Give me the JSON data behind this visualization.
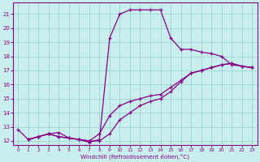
{
  "xlabel": "Windchill (Refroidissement éolien,°C)",
  "xlim": [
    -0.5,
    23.5
  ],
  "ylim": [
    11.7,
    21.8
  ],
  "xticks": [
    0,
    1,
    2,
    3,
    4,
    5,
    6,
    7,
    8,
    9,
    10,
    11,
    12,
    13,
    14,
    15,
    16,
    17,
    18,
    19,
    20,
    21,
    22,
    23
  ],
  "yticks": [
    12,
    13,
    14,
    15,
    16,
    17,
    18,
    19,
    20,
    21
  ],
  "background_color": "#c8eeee",
  "grid_color": "#a0d8d8",
  "line_color": "#880088",
  "line1_x": [
    0,
    1,
    2,
    3,
    4,
    5,
    6,
    7,
    8,
    9,
    10,
    11,
    12,
    13,
    14,
    15,
    16,
    17,
    18,
    19,
    20,
    21,
    22,
    23
  ],
  "line1_y": [
    12.8,
    12.1,
    12.3,
    12.5,
    12.6,
    12.2,
    12.1,
    11.9,
    12.1,
    19.3,
    21.0,
    21.3,
    21.3,
    21.3,
    21.3,
    19.3,
    18.5,
    18.5,
    18.3,
    18.2,
    18.0,
    17.4,
    17.3,
    17.2
  ],
  "line2_x": [
    1,
    2,
    3,
    4,
    5,
    6,
    7,
    8,
    9,
    10,
    11,
    12,
    13,
    14,
    15,
    16,
    17,
    18,
    19,
    20,
    21,
    22,
    23
  ],
  "line2_y": [
    12.1,
    12.3,
    12.5,
    12.3,
    12.2,
    12.1,
    12.0,
    12.5,
    13.8,
    14.5,
    14.8,
    15.0,
    15.2,
    15.3,
    15.8,
    16.3,
    16.8,
    17.0,
    17.2,
    17.4,
    17.5,
    17.3,
    17.2
  ],
  "line3_x": [
    1,
    2,
    3,
    4,
    5,
    6,
    7,
    8,
    9,
    10,
    11,
    12,
    13,
    14,
    15,
    16,
    17,
    18,
    19,
    20,
    21,
    22,
    23
  ],
  "line3_y": [
    12.1,
    12.3,
    12.5,
    12.3,
    12.2,
    12.1,
    12.0,
    12.0,
    12.5,
    13.5,
    14.0,
    14.5,
    14.8,
    15.0,
    15.5,
    16.2,
    16.8,
    17.0,
    17.2,
    17.4,
    17.5,
    17.3,
    17.2
  ]
}
